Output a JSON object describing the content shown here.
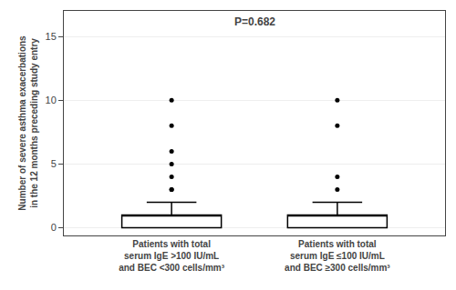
{
  "chart_data": {
    "type": "box",
    "categories": [
      "Patients with total\nserum IgE >100 IU/mL\nand BEC <300 cells/mm³",
      "Patients with total\nserum IgE ≤100 IU/mL\nand BEC ≥300 cells/mm³"
    ],
    "ylabel": "Number of severe asthma exacerbations\nin the 12 months preceding study entry",
    "annotation": "P=0.682",
    "boxes": [
      {
        "q1": 0,
        "median": 1,
        "q3": 1,
        "whisker_low": 0,
        "whisker_high": 2,
        "fliers": [
          3,
          3,
          4,
          5,
          6,
          8,
          10
        ]
      },
      {
        "q1": 0,
        "median": 1,
        "q3": 1,
        "whisker_low": 0,
        "whisker_high": 2,
        "fliers": [
          3,
          4,
          8,
          10
        ]
      }
    ],
    "color": "#000000",
    "ylim": [
      -0.6,
      17.0
    ],
    "yticks": [
      0,
      5,
      10,
      15
    ],
    "grid": true
  }
}
